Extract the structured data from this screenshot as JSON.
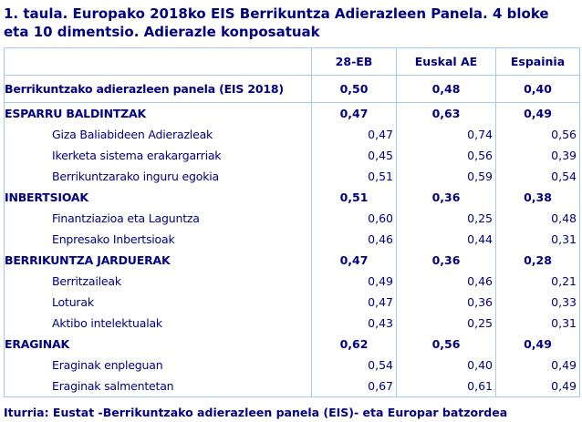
{
  "title_line1": "1. taula. Europako 2018ko EIS Berrikuntza Adierazleen Panela. 4 bloke",
  "title_line2": "eta 10 dimentsio. Adierazle konposatuak",
  "source": "Iturria: Eustat -Berrikuntzako adierazleen panela (EIS)- eta Europar batzordea",
  "colors": {
    "text_navy": "#000080",
    "border_blue": "#A3CCEA",
    "background": "#FFFFFF"
  },
  "chart_data": {
    "type": "table",
    "title": "1. taula. Europako 2018ko EIS Berrikuntza Adierazleen Panela. 4 bloke eta 10 dimentsio. Adierazle konposatuak",
    "columns": [
      "",
      "28-EB",
      "Euskal AE",
      "Espainia"
    ],
    "rows": [
      {
        "label": "Berrikuntzako adierazleen panela (EIS 2018)",
        "type": "panel",
        "values": [
          "0,50",
          "0,48",
          "0,40"
        ]
      },
      {
        "label": "ESPARRU BALDINTZAK",
        "type": "section",
        "values": [
          "0,47",
          "0,63",
          "0,49"
        ]
      },
      {
        "label": "Giza Baliabideen Adierazleak",
        "type": "sub",
        "values": [
          "0,47",
          "0,74",
          "0,56"
        ]
      },
      {
        "label": "Ikerketa sistema erakargarriak",
        "type": "sub",
        "values": [
          "0,45",
          "0,56",
          "0,39"
        ]
      },
      {
        "label": "Berrikuntzarako inguru egokia",
        "type": "sub",
        "values": [
          "0,51",
          "0,59",
          "0,54"
        ]
      },
      {
        "label": "INBERTSIOAK",
        "type": "section",
        "values": [
          "0,51",
          "0,36",
          "0,38"
        ]
      },
      {
        "label": "Finantziazioa eta Laguntza",
        "type": "sub",
        "values": [
          "0,60",
          "0,25",
          "0,48"
        ]
      },
      {
        "label": "Enpresako Inbertsioak",
        "type": "sub",
        "values": [
          "0,46",
          "0,44",
          "0,31"
        ]
      },
      {
        "label": "BERRIKUNTZA JARDUERAK",
        "type": "section",
        "values": [
          "0,47",
          "0,36",
          "0,28"
        ]
      },
      {
        "label": "Berritzaileak",
        "type": "sub",
        "values": [
          "0,49",
          "0,46",
          "0,21"
        ]
      },
      {
        "label": "Loturak",
        "type": "sub",
        "values": [
          "0,47",
          "0,36",
          "0,33"
        ]
      },
      {
        "label": "Aktibo intelektualak",
        "type": "sub",
        "values": [
          "0,43",
          "0,25",
          "0,31"
        ]
      },
      {
        "label": "ERAGINAK",
        "type": "section",
        "values": [
          "0,62",
          "0,56",
          "0,49"
        ]
      },
      {
        "label": "Eraginak enpleguan",
        "type": "sub",
        "values": [
          "0,54",
          "0,40",
          "0,49"
        ]
      },
      {
        "label": "Eraginak salmentetan",
        "type": "sub",
        "values": [
          "0,67",
          "0,61",
          "0,49"
        ]
      }
    ]
  }
}
